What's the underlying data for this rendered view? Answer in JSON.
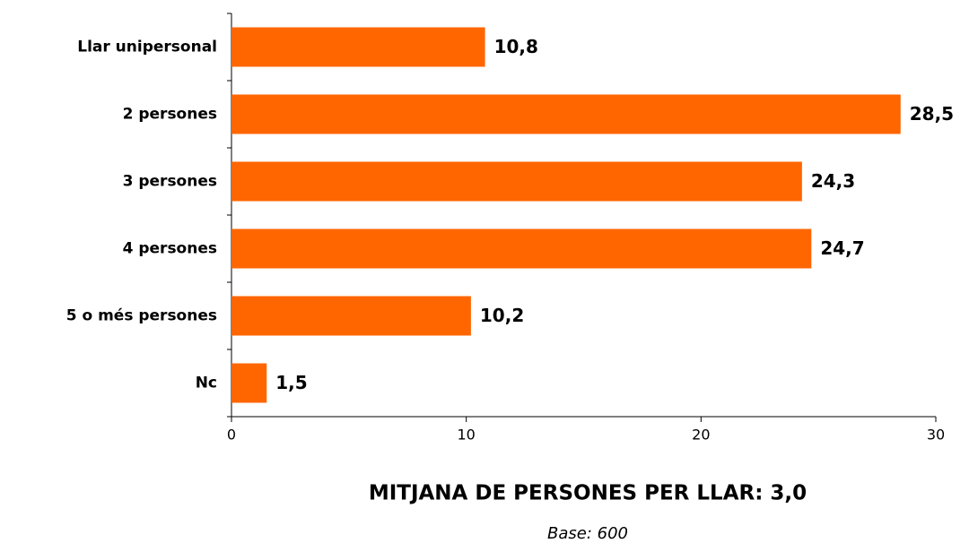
{
  "chart_data": {
    "type": "bar",
    "orientation": "horizontal",
    "categories": [
      "Llar unipersonal",
      "2 persones",
      "3 persones",
      "4 persones",
      "5 o més persones",
      "Nc"
    ],
    "values": [
      10.8,
      28.5,
      24.3,
      24.7,
      10.2,
      1.5
    ],
    "value_labels": [
      "10,8",
      "28,5",
      "24,3",
      "24,7",
      "10,2",
      "1,5"
    ],
    "color": "#ff6600",
    "xlim": [
      0,
      30
    ],
    "xticks": [
      0,
      10,
      20,
      30
    ],
    "annotations": [
      "MITJANA DE PERSONES PER LLAR: 3,0",
      "Base: 600"
    ]
  }
}
